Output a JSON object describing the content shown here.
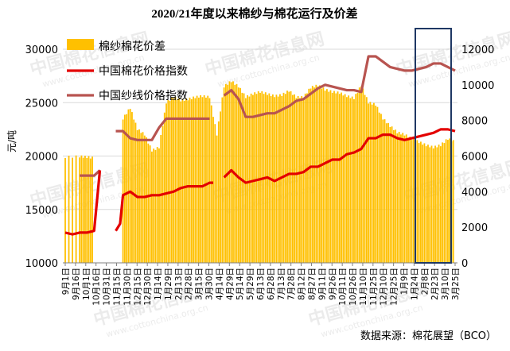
{
  "chart_data": {
    "type": "bar+line",
    "title": "2020/21年度以来棉纱与棉花运行及价差",
    "ylabel_left": "元/吨",
    "ylim_left": [
      10000,
      30000
    ],
    "yticks_left": [
      10000,
      15000,
      20000,
      25000,
      30000
    ],
    "ylim_right": [
      0,
      12000
    ],
    "yticks_right": [
      0,
      2000,
      4000,
      6000,
      8000,
      10000,
      12000
    ],
    "grid": true,
    "legend_position": "top-left",
    "legend": [
      {
        "key": "spread",
        "name": "棉纱棉花价差",
        "color": "#FFC000",
        "kind": "bar"
      },
      {
        "key": "cotton",
        "name": "中国棉花价格指数",
        "color": "#E30000",
        "kind": "line"
      },
      {
        "key": "yarn",
        "name": "中国纱线价格指数",
        "color": "#B85450",
        "kind": "line"
      }
    ],
    "x_tick_labels": [
      "9月1日",
      "9月16日",
      "10月1日",
      "10月16日",
      "10月31日",
      "11月15日",
      "11月30日",
      "12月15日",
      "12月30日",
      "1月14日",
      "1月29日",
      "2月13日",
      "2月28日",
      "3月15日",
      "3月30日",
      "4月14日",
      "4月29日",
      "5月14日",
      "5月29日",
      "6月13日",
      "6月28日",
      "7月13日",
      "7月28日",
      "8月12日",
      "8月27日",
      "9月11日",
      "9月26日",
      "10月11日",
      "10月26日",
      "11月10日",
      "11月25日",
      "12月10日",
      "12月25日",
      "1月9日",
      "1月24日",
      "2月8日",
      "2月23日",
      "3月10日",
      "3月25日"
    ],
    "series_points": {
      "spread": [
        [
          0,
          19900
        ],
        [
          2,
          19950
        ],
        [
          3,
          19900
        ],
        [
          4,
          19800
        ],
        [
          5,
          0
        ],
        [
          6,
          0
        ],
        [
          8,
          23500
        ],
        [
          9,
          24500
        ],
        [
          10,
          22500
        ],
        [
          11,
          22000
        ],
        [
          12,
          20500
        ],
        [
          13,
          20800
        ],
        [
          14,
          25000
        ],
        [
          15,
          25500
        ],
        [
          16,
          25200
        ],
        [
          17,
          25300
        ],
        [
          18,
          25500
        ],
        [
          19,
          25600
        ],
        [
          20,
          25500
        ],
        [
          21,
          22000
        ],
        [
          22,
          26500
        ],
        [
          23,
          27000
        ],
        [
          24,
          26500
        ],
        [
          25,
          25500
        ],
        [
          26,
          25800
        ],
        [
          27,
          26000
        ],
        [
          28,
          25800
        ],
        [
          29,
          25600
        ],
        [
          30,
          25700
        ],
        [
          31,
          26100
        ],
        [
          32,
          25500
        ],
        [
          33,
          25500
        ],
        [
          34,
          26400
        ],
        [
          35,
          26600
        ],
        [
          36,
          26200
        ],
        [
          37,
          26000
        ],
        [
          38,
          25900
        ],
        [
          39,
          25600
        ],
        [
          40,
          25400
        ],
        [
          41,
          26600
        ],
        [
          42,
          25000
        ],
        [
          43,
          24800
        ],
        [
          44,
          23500
        ],
        [
          45,
          22800
        ],
        [
          46,
          22200
        ],
        [
          47,
          22000
        ],
        [
          48,
          21600
        ],
        [
          49,
          21300
        ],
        [
          50,
          21000
        ],
        [
          51,
          20800
        ],
        [
          52,
          21000
        ],
        [
          53,
          21600
        ],
        [
          54,
          21300
        ]
      ],
      "cotton": [
        [
          0,
          1700
        ],
        [
          1,
          1600
        ],
        [
          2,
          1700
        ],
        [
          3,
          1700
        ],
        [
          4,
          1800
        ],
        [
          4.8,
          5200
        ],
        [
          5,
          0
        ],
        [
          6,
          0
        ],
        [
          7,
          1800
        ],
        [
          7.6,
          2200
        ],
        [
          8,
          3800
        ],
        [
          9,
          4000
        ],
        [
          10,
          3700
        ],
        [
          11,
          3700
        ],
        [
          12,
          3800
        ],
        [
          13,
          3800
        ],
        [
          14,
          3900
        ],
        [
          15,
          4000
        ],
        [
          16,
          4200
        ],
        [
          17,
          4300
        ],
        [
          18,
          4300
        ],
        [
          19,
          4300
        ],
        [
          20,
          4500
        ],
        [
          20.5,
          4500
        ],
        [
          21,
          0
        ],
        [
          21.5,
          0
        ],
        [
          22,
          4800
        ],
        [
          23,
          5200
        ],
        [
          24,
          4800
        ],
        [
          25,
          4500
        ],
        [
          26,
          4600
        ],
        [
          27,
          4700
        ],
        [
          28,
          4800
        ],
        [
          29,
          4600
        ],
        [
          30,
          4800
        ],
        [
          31,
          5000
        ],
        [
          32,
          5000
        ],
        [
          33,
          5100
        ],
        [
          34,
          5400
        ],
        [
          35,
          5400
        ],
        [
          36,
          5600
        ],
        [
          37,
          5800
        ],
        [
          38,
          5800
        ],
        [
          39,
          6100
        ],
        [
          40,
          6200
        ],
        [
          41,
          6400
        ],
        [
          42,
          7000
        ],
        [
          43,
          7000
        ],
        [
          44,
          7200
        ],
        [
          45,
          7200
        ],
        [
          46,
          7000
        ],
        [
          47,
          6900
        ],
        [
          48,
          7000
        ],
        [
          49,
          7100
        ],
        [
          50,
          7200
        ],
        [
          51,
          7300
        ],
        [
          52,
          7500
        ],
        [
          53,
          7500
        ],
        [
          54,
          7400
        ]
      ],
      "yarn": [
        [
          0,
          0
        ],
        [
          2,
          4900
        ],
        [
          3,
          4900
        ],
        [
          4,
          4900
        ],
        [
          4.8,
          5200
        ],
        [
          5,
          0
        ],
        [
          6,
          0
        ],
        [
          7,
          7400
        ],
        [
          8,
          7400
        ],
        [
          9,
          7000
        ],
        [
          10,
          6900
        ],
        [
          11,
          6900
        ],
        [
          12,
          6900
        ],
        [
          13,
          7600
        ],
        [
          14,
          8100
        ],
        [
          15,
          8100
        ],
        [
          16,
          8100
        ],
        [
          17,
          8100
        ],
        [
          18,
          8100
        ],
        [
          19,
          8100
        ],
        [
          20,
          8100
        ],
        [
          21,
          0
        ],
        [
          21.5,
          0
        ],
        [
          22,
          9400
        ],
        [
          23,
          9700
        ],
        [
          24,
          9200
        ],
        [
          25,
          8200
        ],
        [
          26,
          8200
        ],
        [
          27,
          8300
        ],
        [
          28,
          8400
        ],
        [
          29,
          8400
        ],
        [
          30,
          8600
        ],
        [
          31,
          8800
        ],
        [
          32,
          9100
        ],
        [
          33,
          9200
        ],
        [
          34,
          9500
        ],
        [
          35,
          9800
        ],
        [
          36,
          10000
        ],
        [
          37,
          9900
        ],
        [
          38,
          9800
        ],
        [
          39,
          9700
        ],
        [
          40,
          9700
        ],
        [
          41,
          9600
        ],
        [
          42,
          11600
        ],
        [
          43,
          11600
        ],
        [
          44,
          11300
        ],
        [
          45,
          11000
        ],
        [
          46,
          10900
        ],
        [
          47,
          10800
        ],
        [
          48,
          10800
        ],
        [
          49,
          10900
        ],
        [
          50,
          11000
        ],
        [
          51,
          11200
        ],
        [
          52,
          11200
        ],
        [
          53,
          11000
        ],
        [
          54,
          10800
        ]
      ]
    },
    "source_note": "数据来源：棉花展望（BCO）",
    "watermark_text": "中国棉花信息网",
    "watermark_url": "www.cottonchina.org.cn"
  }
}
